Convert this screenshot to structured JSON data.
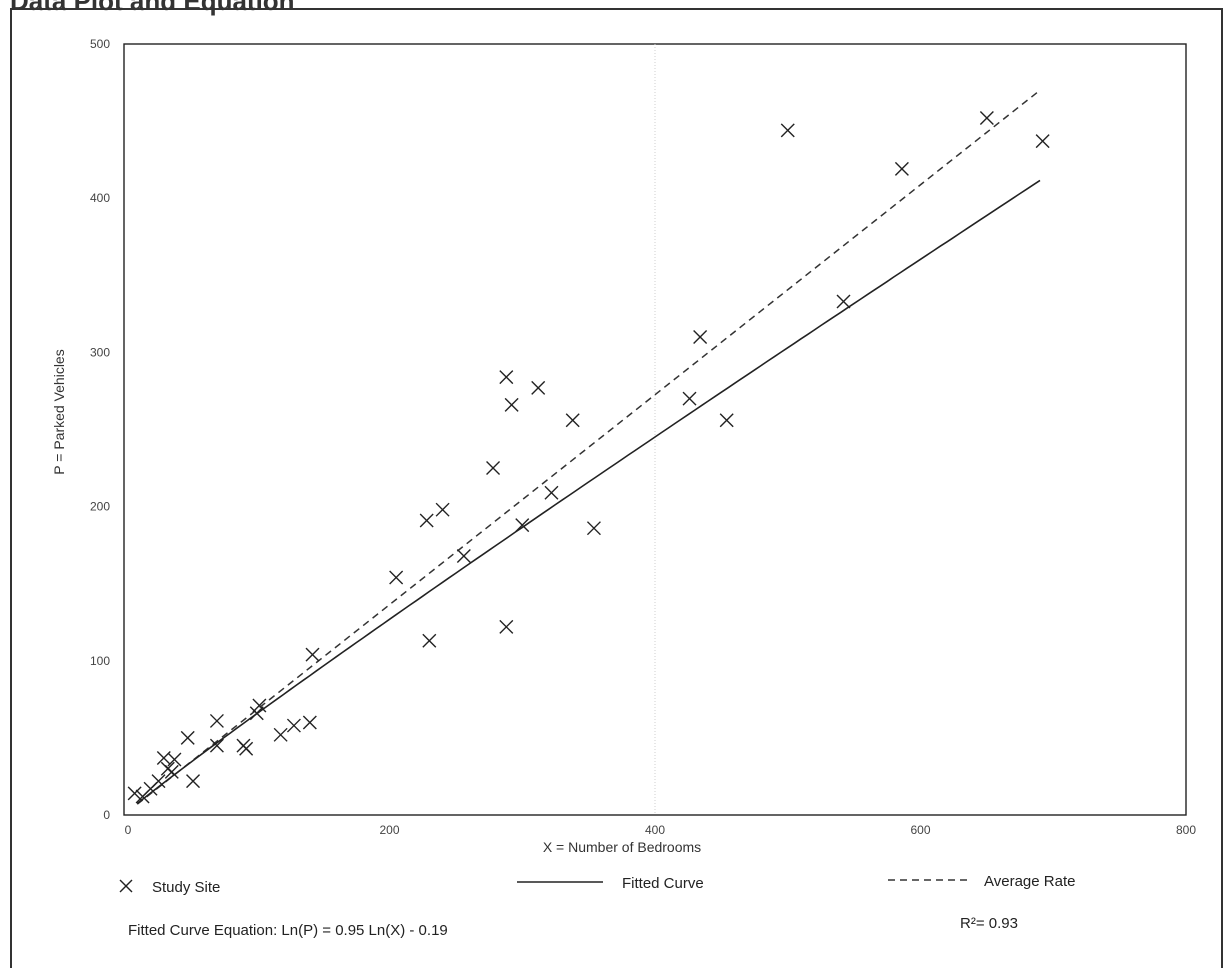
{
  "header": {
    "title": "Data Plot and Equation"
  },
  "chart_data": {
    "type": "scatter",
    "xlabel": "X = Number of Bedrooms",
    "ylabel": "P = Parked Vehicles",
    "xlim": [
      0,
      800
    ],
    "ylim": [
      0,
      500
    ],
    "xticks": [
      0,
      200,
      400,
      600,
      800
    ],
    "yticks": [
      0,
      100,
      200,
      300,
      400,
      500
    ],
    "grid": "faint vertical line at 400",
    "legend": {
      "study_site": "Study Site",
      "fitted_curve": "Fitted Curve",
      "average_rate": "Average Rate"
    },
    "series": [
      {
        "name": "Study Site",
        "marker": "x",
        "points": [
          [
            8,
            14
          ],
          [
            14,
            12
          ],
          [
            20,
            17
          ],
          [
            26,
            22
          ],
          [
            30,
            37
          ],
          [
            33,
            30
          ],
          [
            36,
            28
          ],
          [
            38,
            36
          ],
          [
            48,
            50
          ],
          [
            52,
            22
          ],
          [
            70,
            45
          ],
          [
            70,
            61
          ],
          [
            90,
            45
          ],
          [
            92,
            43
          ],
          [
            100,
            66
          ],
          [
            102,
            71
          ],
          [
            118,
            52
          ],
          [
            128,
            58
          ],
          [
            140,
            60
          ],
          [
            142,
            104
          ],
          [
            205,
            154
          ],
          [
            228,
            191
          ],
          [
            230,
            113
          ],
          [
            240,
            198
          ],
          [
            256,
            168
          ],
          [
            278,
            225
          ],
          [
            288,
            122
          ],
          [
            288,
            284
          ],
          [
            292,
            266
          ],
          [
            300,
            188
          ],
          [
            312,
            277
          ],
          [
            322,
            209
          ],
          [
            338,
            256
          ],
          [
            354,
            186
          ],
          [
            426,
            270
          ],
          [
            434,
            310
          ],
          [
            454,
            256
          ],
          [
            500,
            444
          ],
          [
            542,
            333
          ],
          [
            586,
            419
          ],
          [
            650,
            452
          ],
          [
            692,
            437
          ]
        ]
      },
      {
        "name": "Fitted Curve",
        "style": "solid",
        "equation": "Ln(P) = 0.95 Ln(X) - 0.19",
        "coef": 0.95,
        "intercept": -0.19,
        "x_range": [
          10,
          690
        ]
      },
      {
        "name": "Average Rate",
        "style": "dashed",
        "x_range": [
          10,
          690
        ],
        "endpoints": [
          [
            10,
            7
          ],
          [
            690,
            470
          ]
        ]
      }
    ],
    "annotations": {
      "equation": "Fitted Curve Equation: Ln(P) = 0.95 Ln(X) - 0.19",
      "r_squared": "R²= 0.93"
    }
  }
}
